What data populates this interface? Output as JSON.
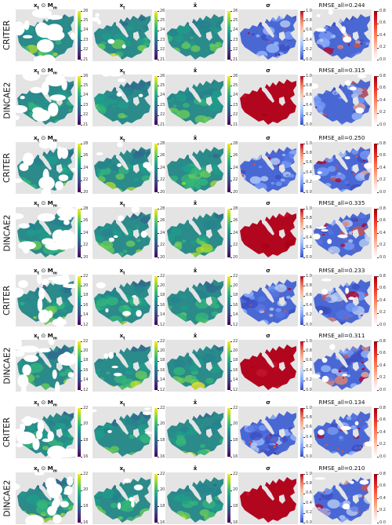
{
  "rows": [
    {
      "method": "CRITER",
      "rmse_title": "RMSE_all=0.244",
      "value_ticks": [
        "21",
        "22",
        "23",
        "24",
        "25",
        "26"
      ]
    },
    {
      "method": "DINCAE2",
      "rmse_title": "RMSE_all=0.315",
      "value_ticks": [
        "21",
        "22",
        "23",
        "24",
        "25",
        "26"
      ]
    },
    {
      "method": "CRITER",
      "rmse_title": "RMSE_all=0.250",
      "value_ticks": [
        "20",
        "22",
        "24",
        "26",
        "28"
      ]
    },
    {
      "method": "DINCAE2",
      "rmse_title": "RMSE_all=0.335",
      "value_ticks": [
        "20",
        "22",
        "24",
        "26",
        "28"
      ]
    },
    {
      "method": "CRITER",
      "rmse_title": "RMSE_all=0.233",
      "value_ticks": [
        "12",
        "14",
        "16",
        "18",
        "20",
        "22"
      ]
    },
    {
      "method": "DINCAE2",
      "rmse_title": "RMSE_all=0.311",
      "value_ticks": [
        "12",
        "14",
        "16",
        "18",
        "20",
        "22"
      ]
    },
    {
      "method": "CRITER",
      "rmse_title": "RMSE_all=0.134",
      "value_ticks": [
        "16",
        "18",
        "20",
        "22"
      ]
    },
    {
      "method": "DINCAE2",
      "rmse_title": "RMSE_all=0.210",
      "value_ticks": [
        "16",
        "18",
        "20",
        "22"
      ]
    }
  ],
  "col_titles": {
    "masked_prefix": "x",
    "masked_sub": "t",
    "masked_op": " ⊙ ",
    "masked_m": "M",
    "masked_m_sub": "m",
    "target": "x",
    "target_sub": "t",
    "recon": "x̂",
    "sigma": "σ"
  },
  "sigma_ticks": [
    "0.0",
    "0.2",
    "0.4",
    "0.6",
    "0.8",
    "1.0"
  ],
  "err_ticks": [
    "0.0",
    "0.2",
    "0.4",
    "0.6",
    "0.8"
  ],
  "colors": {
    "panel_bg": "#e4e4e4",
    "viridis_low": "#440154",
    "viridis_high": "#fde725",
    "cool": "#3b4cc0",
    "warm": "#b40426"
  }
}
